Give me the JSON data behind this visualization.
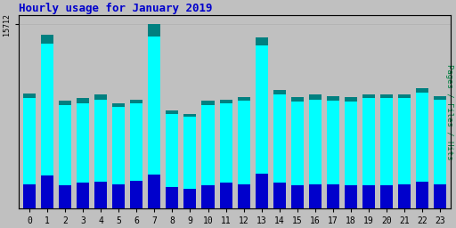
{
  "title": "Hourly usage for January 2019",
  "ylabel_right": "Pages / Files / Hits",
  "ytick_label": "15712",
  "hours": [
    0,
    1,
    2,
    3,
    4,
    5,
    6,
    7,
    8,
    9,
    10,
    11,
    12,
    13,
    14,
    15,
    16,
    17,
    18,
    19,
    20,
    21,
    22,
    23
  ],
  "hits": [
    9800,
    14800,
    9200,
    9400,
    9700,
    9000,
    9300,
    15712,
    8400,
    8100,
    9200,
    9300,
    9500,
    14600,
    10100,
    9500,
    9700,
    9600,
    9500,
    9700,
    9700,
    9700,
    10300,
    9600
  ],
  "files": [
    9400,
    14100,
    8800,
    9000,
    9300,
    8700,
    9000,
    14700,
    8100,
    7800,
    8800,
    9000,
    9200,
    13900,
    9700,
    9100,
    9300,
    9200,
    9100,
    9400,
    9400,
    9400,
    9900,
    9300
  ],
  "pages": [
    2100,
    2800,
    2000,
    2200,
    2300,
    2100,
    2400,
    2900,
    1800,
    1700,
    2000,
    2200,
    2100,
    3000,
    2200,
    2000,
    2100,
    2100,
    2000,
    2000,
    2000,
    2100,
    2300,
    2100
  ],
  "hits_color": "#008080",
  "files_color": "#00FFFF",
  "pages_color": "#0000CC",
  "bg_color": "#C0C0C0",
  "title_color": "#0000CC",
  "right_label_color_pages": "#0000FF",
  "right_label_color_files": "#00CCCC",
  "right_label_color_hits": "#008000",
  "ymax": 15712,
  "ymin": 0,
  "bar_width": 0.7
}
